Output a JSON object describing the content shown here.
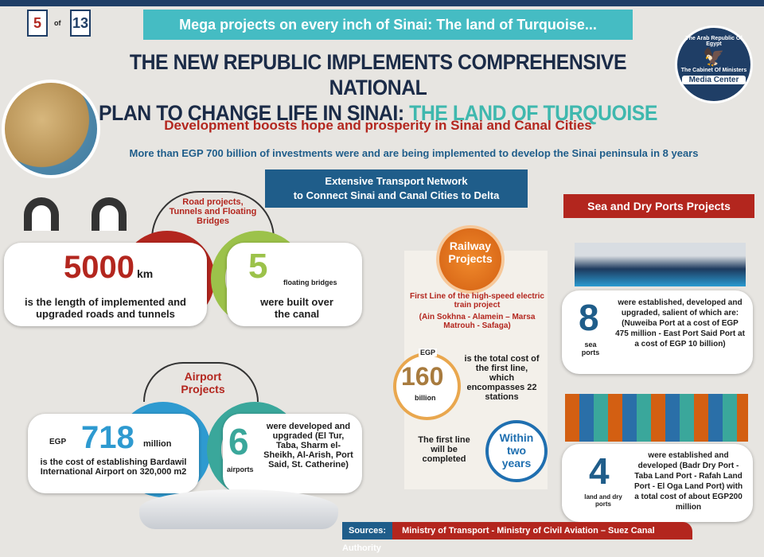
{
  "page": {
    "current": "5",
    "of": "of",
    "total": "13"
  },
  "banner": "Mega projects on every inch of Sinai: The land of Turquoise...",
  "headline": {
    "line1": "THE NEW REPUBLIC IMPLEMENTS COMPREHENSIVE NATIONAL",
    "line2_a": "PLAN TO CHANGE LIFE IN SINAI: ",
    "line2_b": "THE LAND OF TURQUOISE"
  },
  "logo": {
    "top": "The Arab Republic Of Egypt",
    "bottom": "The Cabinet Of Ministers",
    "label": "Media Center"
  },
  "subtitle": "Development boosts hope and prosperity in Sinai and Canal Cities",
  "investment": "More than EGP 700 billion of investments were and are being implemented to develop the Sinai peninsula in 8 years",
  "transport_header": {
    "line1": "Extensive Transport Network",
    "line2": "to Connect Sinai and Canal Cities to Delta"
  },
  "roads": {
    "title": "Road projects, Tunnels and Floating Bridges",
    "km_value": "5000",
    "km_unit": "km",
    "km_text": "is the length of implemented and upgraded roads and tunnels",
    "bridges_value": "5",
    "bridges_unit": "floating bridges",
    "bridges_text": "were built over the canal"
  },
  "airports": {
    "title": "Airport Projects",
    "cost_prefix": "EGP",
    "cost_value": "718",
    "cost_unit": "million",
    "cost_text": "is the cost of establishing Bardawil International Airport on 320,000 m2",
    "count": "6",
    "count_unit": "airports",
    "count_text": "were developed and upgraded (El Tur, Taba, Sharm el-Sheikh, Al-Arish, Port Said, St. Catherine)"
  },
  "railway": {
    "title": "Railway Projects",
    "line_text": "First Line of the high-speed electric train project",
    "route": "(Ain Sokhna - Alamein – Marsa Matrouh - Safaga)",
    "cost_prefix": "EGP",
    "cost_value": "160",
    "cost_unit": "billion",
    "cost_text": "is the total cost of the first line, which encompasses 22 stations",
    "completion_text": "The first line will be completed",
    "completion_time": "Within two years"
  },
  "ports": {
    "title": "Sea and Dry Ports Projects",
    "sea_value": "8",
    "sea_unit": "sea ports",
    "sea_text": "were established, developed and upgraded, salient of which are: (Nuweiba Port at a cost of EGP 475 million - East Port Said Port at a cost of EGP 10 billion)",
    "land_value": "4",
    "land_unit": "land and dry ports",
    "land_text": "were established and developed (Badr Dry Port - Taba Land Port - Rafah Land Port - El Oga Land Port) with a total cost of about EGP200 million"
  },
  "sources": {
    "label": "Sources:",
    "text": "Ministry of Transport - Ministry of Civil Aviation – Suez Canal Authority"
  }
}
